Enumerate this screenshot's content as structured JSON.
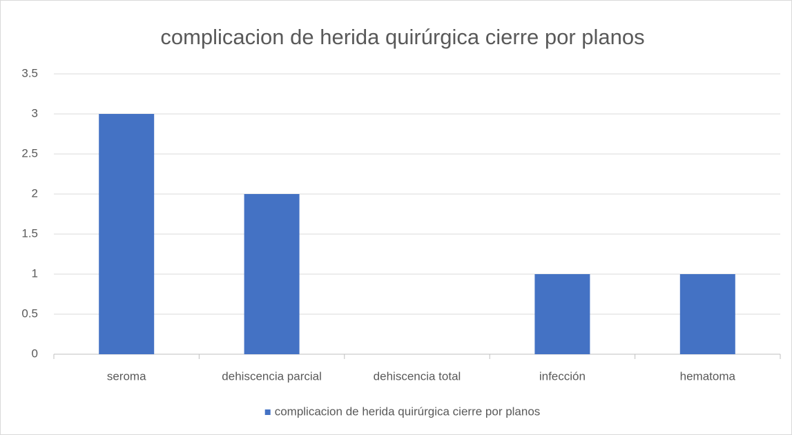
{
  "chart_data": {
    "type": "bar",
    "title": "complicacion de herida quirúrgica cierre por planos",
    "categories": [
      "seroma",
      "dehiscencia parcial",
      "dehiscencia total",
      "infección",
      "hematoma"
    ],
    "series": [
      {
        "name": "complicacion de herida quirúrgica cierre por planos",
        "color": "#4472c4",
        "values": [
          3,
          2,
          0,
          1,
          1
        ]
      }
    ],
    "ylim": [
      0,
      3.5
    ],
    "yticks": [
      0,
      0.5,
      1,
      1.5,
      2,
      2.5,
      3,
      3.5
    ],
    "grid": true,
    "legend": "bottom"
  }
}
